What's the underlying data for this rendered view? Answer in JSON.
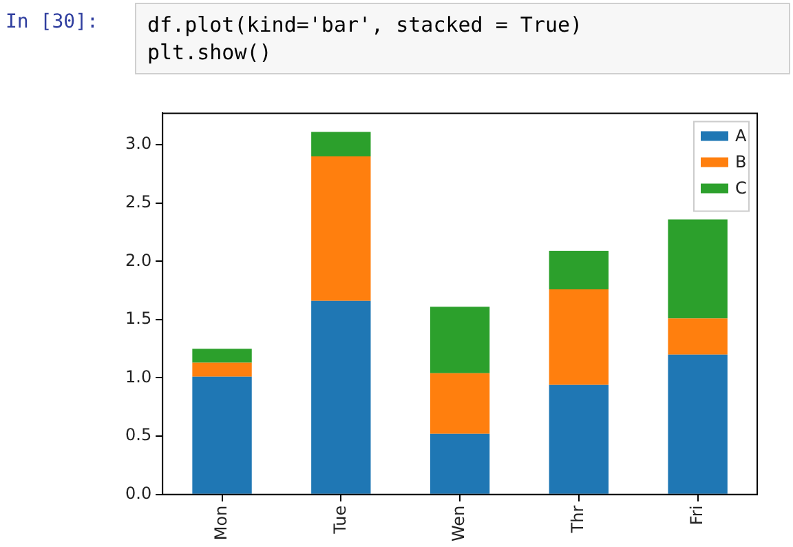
{
  "chart_data": {
    "type": "bar",
    "stacked": true,
    "annotations": [
      "In [30]:",
      "df.plot(kind='bar', stacked = True)\nplt.show()"
    ],
    "categories": [
      "Mon",
      "Tue",
      "Wen",
      "Thr",
      "Fri"
    ],
    "series": [
      {
        "name": "A",
        "color": "#1f77b4",
        "values": [
          1.01,
          1.66,
          0.52,
          0.94,
          1.2
        ]
      },
      {
        "name": "B",
        "color": "#ff7f0e",
        "values": [
          0.12,
          1.24,
          0.52,
          0.82,
          0.31
        ]
      },
      {
        "name": "C",
        "color": "#2ca02c",
        "values": [
          0.12,
          0.21,
          0.57,
          0.33,
          0.85
        ]
      }
    ],
    "ylim": [
      0,
      3.27
    ],
    "yticks": [
      {
        "value": 0,
        "label": "0.0"
      },
      {
        "value": 0.5,
        "label": "0.5"
      },
      {
        "value": 1,
        "label": "1.0"
      },
      {
        "value": 1.5,
        "label": "1.5"
      },
      {
        "value": 2,
        "label": "2.0"
      },
      {
        "value": 2.5,
        "label": "2.5"
      },
      {
        "value": 3,
        "label": "3.0"
      }
    ],
    "grid": false,
    "legend": "top right"
  }
}
